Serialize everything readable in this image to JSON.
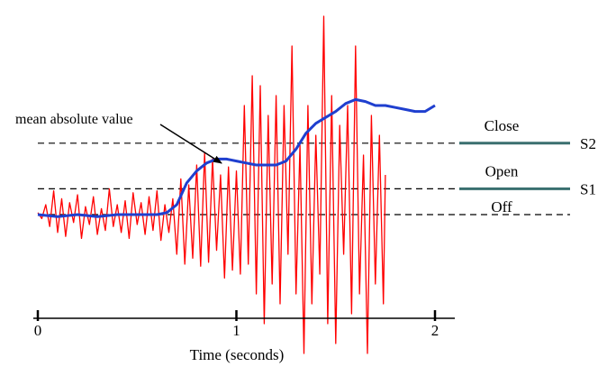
{
  "chart_data": {
    "type": "line",
    "title": "",
    "xlabel": "Time (seconds)",
    "ylabel": "",
    "xlim": [
      0,
      2
    ],
    "ylim": [
      -1.0,
      1.0
    ],
    "x_ticks": [
      0,
      1,
      2
    ],
    "x_tick_labels": [
      "0",
      "1",
      "2"
    ],
    "grid": false,
    "legend": "none",
    "thresholds": [
      {
        "name": "S2",
        "value": 0.36,
        "label": "S2"
      },
      {
        "name": "S1",
        "value": 0.13,
        "label": "S1"
      },
      {
        "name": "baseline",
        "value": 0.0,
        "label": ""
      }
    ],
    "region_labels": [
      {
        "text": "Close",
        "value": 0.45
      },
      {
        "text": "Open",
        "value": 0.22
      },
      {
        "text": "Off",
        "value": 0.04
      }
    ],
    "annotations": [
      {
        "text": "mean absolute value",
        "points_to": {
          "x": 0.9,
          "y": 0.26
        }
      }
    ],
    "series": [
      {
        "color": "#ff0000",
        "x": [
          0.0,
          0.02,
          0.04,
          0.06,
          0.08,
          0.1,
          0.12,
          0.14,
          0.16,
          0.18,
          0.2,
          0.22,
          0.24,
          0.26,
          0.28,
          0.3,
          0.32,
          0.34,
          0.36,
          0.38,
          0.4,
          0.42,
          0.44,
          0.46,
          0.48,
          0.5,
          0.52,
          0.54,
          0.56,
          0.58,
          0.6,
          0.62,
          0.64,
          0.66,
          0.68,
          0.7,
          0.72,
          0.74,
          0.76,
          0.78,
          0.8,
          0.82,
          0.84,
          0.86,
          0.88,
          0.9,
          0.92,
          0.94,
          0.96,
          0.98,
          1.0,
          1.02,
          1.04,
          1.06,
          1.08,
          1.1,
          1.12,
          1.14,
          1.16,
          1.18,
          1.2,
          1.22,
          1.24,
          1.26,
          1.28,
          1.3,
          1.32,
          1.34,
          1.36,
          1.38,
          1.4,
          1.42,
          1.44,
          1.46,
          1.48,
          1.5,
          1.52,
          1.54,
          1.56,
          1.58,
          1.6,
          1.62,
          1.64,
          1.66,
          1.68,
          1.7,
          1.72,
          1.74,
          1.75
        ],
        "y": [
          0.01,
          -0.02,
          0.05,
          -0.06,
          0.12,
          -0.09,
          0.08,
          -0.11,
          0.06,
          -0.04,
          0.1,
          -0.12,
          0.04,
          -0.05,
          0.09,
          -0.1,
          0.03,
          -0.08,
          0.13,
          -0.06,
          0.05,
          -0.09,
          0.07,
          -0.12,
          0.11,
          -0.05,
          0.06,
          -0.1,
          0.09,
          -0.08,
          0.12,
          -0.13,
          0.05,
          -0.09,
          0.08,
          -0.2,
          0.18,
          -0.25,
          0.15,
          -0.22,
          0.25,
          -0.26,
          0.31,
          -0.24,
          0.28,
          -0.18,
          0.2,
          -0.32,
          0.24,
          -0.28,
          0.22,
          -0.3,
          0.55,
          -0.25,
          0.7,
          -0.4,
          0.65,
          -0.55,
          0.5,
          -0.35,
          0.6,
          -0.45,
          0.55,
          -0.2,
          0.85,
          -0.4,
          0.35,
          -0.7,
          0.55,
          -0.45,
          0.4,
          -0.3,
          1.0,
          -0.55,
          0.6,
          -0.65,
          0.45,
          -0.2,
          0.55,
          -0.5,
          0.85,
          -0.4,
          0.3,
          -0.7,
          0.5,
          -0.35,
          0.4,
          -0.45,
          0.2
        ]
      },
      {
        "color": "#1f3fcf",
        "x": [
          0.0,
          0.1,
          0.2,
          0.3,
          0.4,
          0.5,
          0.6,
          0.65,
          0.7,
          0.75,
          0.8,
          0.85,
          0.9,
          0.95,
          1.0,
          1.05,
          1.1,
          1.15,
          1.2,
          1.25,
          1.3,
          1.35,
          1.4,
          1.45,
          1.5,
          1.55,
          1.6,
          1.65,
          1.7,
          1.75,
          1.8,
          1.85,
          1.9,
          1.95,
          2.0
        ],
        "y": [
          0.0,
          -0.01,
          0.0,
          -0.01,
          0.0,
          0.0,
          0.0,
          0.01,
          0.05,
          0.16,
          0.22,
          0.26,
          0.28,
          0.28,
          0.27,
          0.26,
          0.25,
          0.25,
          0.25,
          0.27,
          0.33,
          0.41,
          0.46,
          0.49,
          0.52,
          0.56,
          0.58,
          0.57,
          0.55,
          0.55,
          0.54,
          0.53,
          0.52,
          0.52,
          0.55
        ]
      }
    ]
  }
}
